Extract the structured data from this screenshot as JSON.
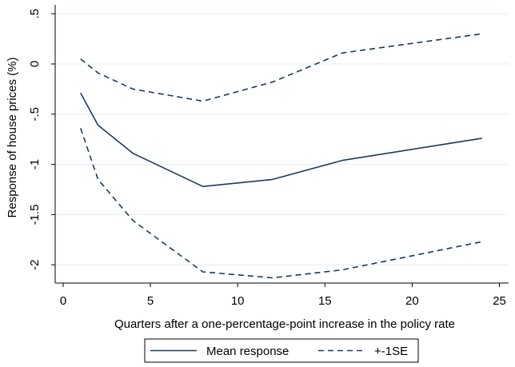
{
  "chart_data": {
    "type": "line",
    "title": "",
    "xlabel": "Quarters after a one-percentage-point increase in the policy rate",
    "ylabel": "Response of house prices (%)",
    "xlim": [
      0,
      25
    ],
    "ylim": [
      -2.2,
      0.5
    ],
    "grid": true,
    "x_ticks": [
      0,
      5,
      10,
      15,
      20,
      25
    ],
    "x_tick_labels": [
      "0",
      "5",
      "10",
      "15",
      "20",
      "25"
    ],
    "y_ticks": [
      0.5,
      0,
      -0.5,
      -1,
      -1.5,
      -2
    ],
    "y_tick_labels": [
      ".5",
      "0",
      "-.5",
      "-1",
      "-1.5",
      "-2"
    ],
    "x": [
      1,
      2,
      4,
      8,
      12,
      16,
      24
    ],
    "series": [
      {
        "name": "Mean response",
        "style": "solid",
        "values": [
          -0.29,
          -0.61,
          -0.89,
          -1.22,
          -1.15,
          -0.96,
          -0.74
        ]
      },
      {
        "name": "+-1SE",
        "style": "dashed",
        "values": [
          0.05,
          -0.09,
          -0.25,
          -0.37,
          -0.18,
          0.11,
          0.3
        ]
      },
      {
        "name": "",
        "style": "dashed",
        "values": [
          -0.64,
          -1.15,
          -1.56,
          -2.07,
          -2.13,
          -2.05,
          -1.77
        ]
      }
    ],
    "legend": {
      "placement": "bottom",
      "entries": [
        {
          "label": "Mean response",
          "style": "solid"
        },
        {
          "label": "+-1SE",
          "style": "dashed"
        }
      ]
    },
    "colors": {
      "line": "#1a3a5c",
      "grid": "#e6ecf0",
      "axis": "#000000"
    }
  }
}
